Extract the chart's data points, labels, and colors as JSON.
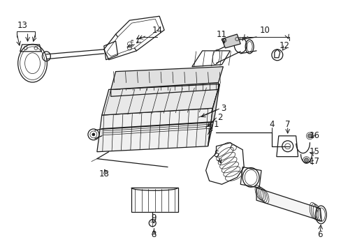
{
  "bg_color": "#ffffff",
  "line_color": "#1a1a1a",
  "figsize": [
    4.89,
    3.6
  ],
  "dpi": 100,
  "label_fontsize": 8.5,
  "lw_main": 0.9,
  "lw_thin": 0.5,
  "lw_thick": 1.4
}
